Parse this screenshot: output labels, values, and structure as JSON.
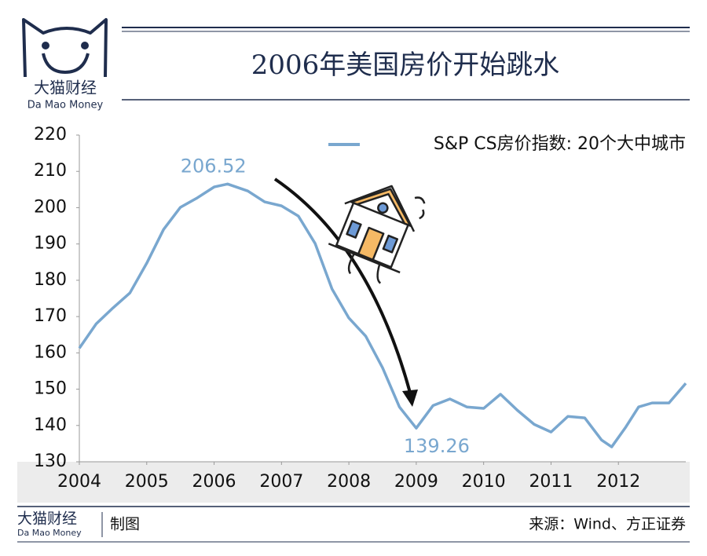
{
  "brand": {
    "name": "大猫财经",
    "english": "Da Mao Money"
  },
  "footer": {
    "credit": "制图",
    "source": "来源：Wind、方正证券",
    "brand_name": "大猫财经",
    "brand_english": "Da Mao Money"
  },
  "chart_data": {
    "type": "line",
    "title": "2006年美国房价开始跳水",
    "x": [
      2004.0,
      2004.25,
      2004.5,
      2004.75,
      2005.0,
      2005.25,
      2005.5,
      2005.75,
      2006.0,
      2006.2,
      2006.5,
      2006.75,
      2007.0,
      2007.25,
      2007.5,
      2007.75,
      2008.0,
      2008.25,
      2008.5,
      2008.75,
      2009.0,
      2009.25,
      2009.5,
      2009.75,
      2010.0,
      2010.25,
      2010.5,
      2010.75,
      2011.0,
      2011.25,
      2011.5,
      2011.75,
      2011.9,
      2012.1,
      2012.3,
      2012.5,
      2012.75,
      2013.0
    ],
    "series": [
      {
        "name": "S&P CS房价指数: 20个大中城市",
        "color": "#79a7cf",
        "values": [
          161.3,
          168.0,
          172.4,
          176.5,
          184.7,
          194.0,
          200.1,
          202.7,
          205.7,
          206.52,
          204.6,
          201.6,
          200.5,
          197.7,
          190.1,
          177.6,
          169.6,
          164.6,
          155.9,
          145.1,
          139.26,
          145.5,
          147.3,
          145.1,
          144.7,
          148.6,
          144.2,
          140.3,
          138.2,
          142.5,
          142.1,
          136.0,
          134.1,
          139.3,
          145.1,
          146.2,
          146.2,
          151.6
        ],
        "value_labels": [
          null,
          null,
          null,
          null,
          null,
          null,
          null,
          null,
          null,
          "206.52",
          null,
          null,
          null,
          null,
          null,
          null,
          null,
          null,
          null,
          null,
          "139.26",
          null,
          null,
          null,
          null,
          null,
          null,
          null,
          null,
          null,
          null,
          null,
          null,
          null,
          null,
          null,
          null,
          null
        ]
      }
    ],
    "xlim": [
      2004,
      2013
    ],
    "xticks": [
      2004,
      2005,
      2006,
      2007,
      2008,
      2009,
      2010,
      2011,
      2012
    ],
    "ylim": [
      130,
      220
    ],
    "yticks": [
      130,
      140,
      150,
      160,
      170,
      180,
      190,
      200,
      210,
      220
    ],
    "grid": false,
    "legend": "top-right"
  }
}
